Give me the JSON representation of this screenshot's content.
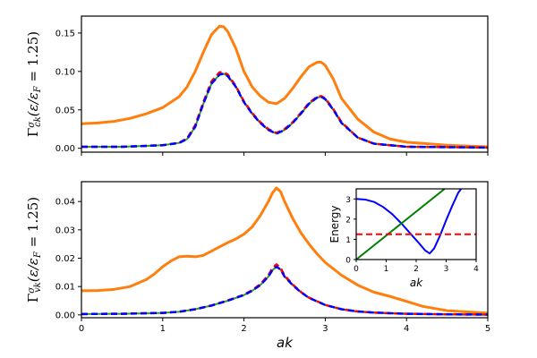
{
  "chart_data": [
    {
      "type": "line",
      "panel": "top",
      "ylabel_parts": {
        "gamma": "Γ",
        "sup": "σ",
        "sub": "ck",
        "rest": "(ε/ε",
        "sub2": "F",
        "tail": " = 1.25)"
      },
      "xlim": [
        0,
        5
      ],
      "ylim": [
        -0.005,
        0.172
      ],
      "xticks": [
        0,
        1,
        2,
        3,
        4,
        5
      ],
      "yticks": [
        0.0,
        0.05,
        0.1,
        0.15
      ],
      "ytick_labels": [
        "0.00",
        "0.05",
        "0.10",
        "0.15"
      ],
      "show_xtick_labels": false,
      "series": [
        {
          "color": "#ff7f0e",
          "style": "solid",
          "width": 3,
          "x": [
            0,
            0.2,
            0.4,
            0.6,
            0.8,
            1.0,
            1.2,
            1.3,
            1.4,
            1.5,
            1.6,
            1.7,
            1.75,
            1.8,
            1.9,
            2.0,
            2.1,
            2.2,
            2.3,
            2.4,
            2.5,
            2.6,
            2.7,
            2.8,
            2.9,
            2.95,
            3.0,
            3.1,
            3.2,
            3.4,
            3.6,
            3.8,
            4.0,
            4.5,
            5.0
          ],
          "y": [
            0.032,
            0.033,
            0.035,
            0.039,
            0.045,
            0.053,
            0.067,
            0.08,
            0.1,
            0.125,
            0.148,
            0.159,
            0.158,
            0.152,
            0.13,
            0.1,
            0.08,
            0.068,
            0.06,
            0.058,
            0.065,
            0.078,
            0.093,
            0.106,
            0.112,
            0.112,
            0.108,
            0.09,
            0.065,
            0.038,
            0.021,
            0.012,
            0.008,
            0.004,
            0.002
          ]
        },
        {
          "color": "#2ca02c",
          "style": "solid",
          "width": 2,
          "x": [
            0,
            0.5,
            1.0,
            1.2,
            1.3,
            1.4,
            1.5,
            1.6,
            1.7,
            1.75,
            1.8,
            1.9,
            2.0,
            2.1,
            2.2,
            2.3,
            2.4,
            2.5,
            2.6,
            2.7,
            2.8,
            2.9,
            2.95,
            3.0,
            3.1,
            3.2,
            3.4,
            3.6,
            4.0,
            5.0
          ],
          "y": [
            0.002,
            0.002,
            0.004,
            0.007,
            0.012,
            0.028,
            0.058,
            0.084,
            0.096,
            0.097,
            0.094,
            0.08,
            0.06,
            0.045,
            0.033,
            0.024,
            0.019,
            0.024,
            0.033,
            0.045,
            0.058,
            0.066,
            0.067,
            0.064,
            0.05,
            0.033,
            0.014,
            0.006,
            0.002,
            0.001
          ]
        },
        {
          "color": "#ff0000",
          "style": "dashed",
          "width": 2.5,
          "x": [
            0,
            0.5,
            1.0,
            1.2,
            1.3,
            1.4,
            1.5,
            1.6,
            1.7,
            1.75,
            1.8,
            1.9,
            2.0,
            2.1,
            2.2,
            2.3,
            2.4,
            2.5,
            2.6,
            2.7,
            2.8,
            2.9,
            2.95,
            3.0,
            3.1,
            3.2,
            3.4,
            3.6,
            4.0,
            5.0
          ],
          "y": [
            0.002,
            0.002,
            0.004,
            0.007,
            0.013,
            0.03,
            0.06,
            0.087,
            0.099,
            0.099,
            0.096,
            0.081,
            0.061,
            0.046,
            0.034,
            0.025,
            0.02,
            0.025,
            0.034,
            0.046,
            0.059,
            0.067,
            0.068,
            0.065,
            0.051,
            0.034,
            0.014,
            0.006,
            0.002,
            0.001
          ]
        },
        {
          "color": "#0000ff",
          "style": "dashed",
          "width": 2.5,
          "x": [
            0,
            0.5,
            1.0,
            1.2,
            1.3,
            1.4,
            1.5,
            1.6,
            1.7,
            1.75,
            1.8,
            1.9,
            2.0,
            2.1,
            2.2,
            2.3,
            2.4,
            2.5,
            2.6,
            2.7,
            2.8,
            2.9,
            2.95,
            3.0,
            3.1,
            3.2,
            3.4,
            3.6,
            4.0,
            5.0
          ],
          "y": [
            0.002,
            0.002,
            0.004,
            0.007,
            0.012,
            0.028,
            0.058,
            0.084,
            0.096,
            0.097,
            0.094,
            0.08,
            0.06,
            0.045,
            0.033,
            0.024,
            0.019,
            0.024,
            0.033,
            0.045,
            0.058,
            0.066,
            0.067,
            0.064,
            0.05,
            0.033,
            0.014,
            0.006,
            0.002,
            0.001
          ]
        }
      ]
    },
    {
      "type": "line",
      "panel": "bottom",
      "xlabel": "ak",
      "ylabel_parts": {
        "gamma": "Γ",
        "sup": "σ",
        "sub": "vk",
        "rest": "(ε/ε",
        "sub2": "F",
        "tail": " = 1.25)"
      },
      "xlim": [
        0,
        5
      ],
      "ylim": [
        -0.001,
        0.047
      ],
      "xticks": [
        0,
        1,
        2,
        3,
        4,
        5
      ],
      "xtick_labels": [
        "0",
        "1",
        "2",
        "3",
        "4",
        "5"
      ],
      "yticks": [
        0.0,
        0.01,
        0.02,
        0.03,
        0.04
      ],
      "ytick_labels": [
        "0.00",
        "0.01",
        "0.02",
        "0.03",
        "0.04"
      ],
      "show_xtick_labels": true,
      "series": [
        {
          "color": "#ff7f0e",
          "style": "solid",
          "width": 3,
          "x": [
            0,
            0.2,
            0.4,
            0.6,
            0.8,
            0.9,
            1.0,
            1.1,
            1.2,
            1.3,
            1.4,
            1.5,
            1.6,
            1.7,
            1.8,
            1.9,
            2.0,
            2.1,
            2.2,
            2.3,
            2.35,
            2.4,
            2.45,
            2.5,
            2.6,
            2.7,
            2.8,
            2.9,
            3.0,
            3.2,
            3.4,
            3.6,
            3.8,
            4.0,
            4.2,
            4.5,
            5.0
          ],
          "y": [
            0.0085,
            0.0086,
            0.009,
            0.01,
            0.0125,
            0.0145,
            0.017,
            0.019,
            0.0205,
            0.0207,
            0.0205,
            0.021,
            0.0225,
            0.024,
            0.0255,
            0.0268,
            0.0285,
            0.031,
            0.035,
            0.04,
            0.043,
            0.0448,
            0.0435,
            0.04,
            0.034,
            0.029,
            0.025,
            0.0215,
            0.0185,
            0.014,
            0.0105,
            0.008,
            0.0065,
            0.0048,
            0.003,
            0.0015,
            0.0006
          ]
        },
        {
          "color": "#2ca02c",
          "style": "solid",
          "width": 2,
          "x": [
            0,
            0.5,
            1.0,
            1.2,
            1.4,
            1.6,
            1.8,
            2.0,
            2.1,
            2.2,
            2.3,
            2.35,
            2.4,
            2.45,
            2.5,
            2.6,
            2.7,
            2.8,
            3.0,
            3.2,
            3.4,
            3.6,
            4.0,
            4.5,
            5.0
          ],
          "y": [
            0.0003,
            0.0004,
            0.0007,
            0.0011,
            0.002,
            0.0033,
            0.005,
            0.007,
            0.0085,
            0.0105,
            0.0135,
            0.0158,
            0.017,
            0.016,
            0.0135,
            0.0105,
            0.008,
            0.006,
            0.0035,
            0.002,
            0.0012,
            0.0008,
            0.0004,
            0.0002,
            0.0001
          ]
        },
        {
          "color": "#ff0000",
          "style": "dashed",
          "width": 2.5,
          "x": [
            0,
            0.5,
            1.0,
            1.2,
            1.4,
            1.6,
            1.8,
            2.0,
            2.1,
            2.2,
            2.3,
            2.35,
            2.4,
            2.45,
            2.5,
            2.6,
            2.7,
            2.8,
            3.0,
            3.2,
            3.4,
            3.6,
            4.0,
            4.5,
            5.0
          ],
          "y": [
            0.0003,
            0.0004,
            0.0007,
            0.0011,
            0.002,
            0.0033,
            0.0051,
            0.0071,
            0.0087,
            0.0108,
            0.014,
            0.0165,
            0.0178,
            0.0166,
            0.0139,
            0.0107,
            0.0081,
            0.0061,
            0.0035,
            0.002,
            0.0012,
            0.0008,
            0.0004,
            0.0002,
            0.0001
          ]
        },
        {
          "color": "#0000ff",
          "style": "dashed",
          "width": 2.5,
          "x": [
            0,
            0.5,
            1.0,
            1.2,
            1.4,
            1.6,
            1.8,
            2.0,
            2.1,
            2.2,
            2.3,
            2.35,
            2.4,
            2.45,
            2.5,
            2.6,
            2.7,
            2.8,
            3.0,
            3.2,
            3.4,
            3.6,
            4.0,
            4.5,
            5.0
          ],
          "y": [
            0.0003,
            0.0004,
            0.0007,
            0.0011,
            0.002,
            0.0033,
            0.005,
            0.007,
            0.0085,
            0.0105,
            0.0135,
            0.0158,
            0.017,
            0.016,
            0.0135,
            0.0105,
            0.008,
            0.006,
            0.0035,
            0.002,
            0.0012,
            0.0008,
            0.0004,
            0.0002,
            0.0001
          ]
        }
      ]
    },
    {
      "type": "line",
      "panel": "inset",
      "xlabel": "ak",
      "ylabel": "Energy",
      "xlim": [
        0,
        4
      ],
      "ylim": [
        0,
        3.5
      ],
      "xticks": [
        0,
        1,
        2,
        3,
        4
      ],
      "xtick_labels": [
        "0",
        "1",
        "2",
        "3",
        "4"
      ],
      "yticks": [
        0,
        1,
        2,
        3
      ],
      "ytick_labels": [
        "0",
        "1",
        "2",
        "3"
      ],
      "series": [
        {
          "color": "#0000ff",
          "style": "solid",
          "width": 2,
          "x": [
            0,
            0.3,
            0.6,
            0.9,
            1.2,
            1.5,
            1.8,
            2.1,
            2.3,
            2.45,
            2.6,
            2.8,
            3.0,
            3.2,
            3.4,
            3.55
          ],
          "y": [
            3.0,
            2.97,
            2.85,
            2.6,
            2.25,
            1.8,
            1.3,
            0.8,
            0.45,
            0.3,
            0.55,
            1.2,
            1.95,
            2.65,
            3.3,
            3.6
          ]
        },
        {
          "color": "#008000",
          "style": "solid",
          "width": 2,
          "x": [
            0,
            2.95
          ],
          "y": [
            0,
            3.5
          ]
        },
        {
          "color": "#ff0000",
          "style": "dashed",
          "width": 2,
          "x": [
            0,
            4
          ],
          "y": [
            1.25,
            1.25
          ]
        }
      ]
    }
  ]
}
